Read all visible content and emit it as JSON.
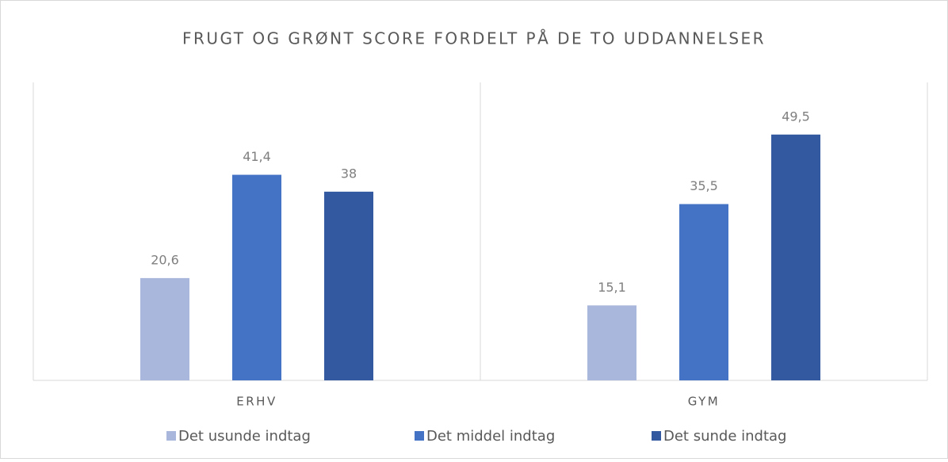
{
  "chart_data": {
    "type": "bar",
    "title": "FRUGT OG GRØNT SCORE FORDELT PÅ DE TO UDDANNELSER",
    "categories": [
      "ERHV",
      "GYM"
    ],
    "series": [
      {
        "name": "Det usunde indtag",
        "color": "#a9b7dc",
        "values": [
          20.6,
          15.1
        ],
        "value_labels": [
          "20,6",
          "15,1"
        ]
      },
      {
        "name": "Det middel indtag",
        "color": "#4472c4",
        "values": [
          41.4,
          35.5
        ],
        "value_labels": [
          "41,4",
          "35,5"
        ]
      },
      {
        "name": "Det sunde indtag",
        "color": "#335aa1",
        "values": [
          38,
          49.5
        ],
        "value_labels": [
          "38",
          "49,5"
        ]
      }
    ],
    "ylim": [
      0,
      60
    ],
    "legend": "bottom"
  }
}
